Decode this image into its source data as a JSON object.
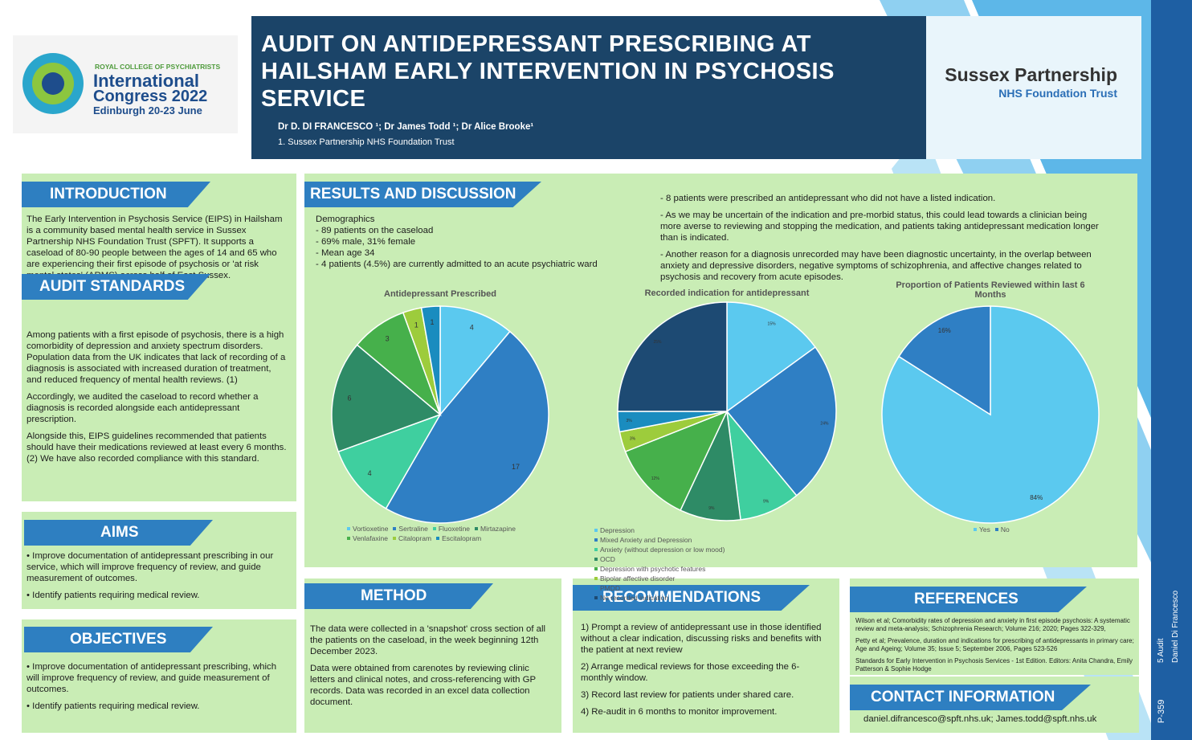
{
  "header": {
    "congress_org": "ROYAL COLLEGE OF PSYCHIATRISTS",
    "congress_name": "International",
    "congress_year": "Congress 2022",
    "congress_place": "Edinburgh 20-23 June",
    "title": "AUDIT ON ANTIDEPRESSANT PRESCRIBING AT HAILSHAM EARLY INTERVENTION IN PSYCHOSIS SERVICE",
    "authors": "Dr D. DI FRANCESCO ¹; Dr James Todd ¹; Dr Alice Brooke¹",
    "affiliation": "1. Sussex Partnership NHS Foundation Trust",
    "partner_name": "Sussex Partnership",
    "partner_sub": "NHS Foundation Trust"
  },
  "sidebar": {
    "topic": "5 Audit",
    "author": "Daniel Di Francesco",
    "code": "P-359"
  },
  "sections": {
    "introduction": {
      "heading": "INTRODUCTION",
      "paragraphs": [
        "The Early Intervention in Psychosis Service (EIPS) in Hailsham is a community based mental health service in Sussex Partnership NHS Foundation Trust (SPFT). It supports a caseload of 80-90 people between the ages of 14 and 65 who are experiencing their first episode of psychosis or 'at risk mental states' (ARMS) across half of East Sussex."
      ]
    },
    "audit_standards": {
      "heading": "AUDIT STANDARDS",
      "paragraphs": [
        "Among patients with a first episode of psychosis, there is a high comorbidity of depression and anxiety spectrum disorders.  Population data from the UK indicates that lack of recording of a diagnosis is associated with increased duration of treatment, and reduced frequency of mental health reviews. (1)",
        "Accordingly, we audited the caseload to record whether a diagnosis is recorded alongside each antidepressant prescription.",
        "Alongside this, EIPS guidelines recommended that patients should have their medications reviewed at least every 6 months. (2)  We have also recorded compliance with this standard."
      ]
    },
    "aims": {
      "heading": "AIMS",
      "paragraphs": [
        "•  Improve documentation of antidepressant prescribing in our service, which will improve frequency of review, and guide measurement of outcomes.",
        "•  Identify patients requiring medical review."
      ]
    },
    "objectives": {
      "heading": "OBJECTIVES",
      "paragraphs": [
        "•  Improve documentation of antidepressant prescribing, which will improve frequency of review, and guide measurement of outcomes.",
        "•  Identify patients requiring medical review."
      ]
    },
    "results": {
      "heading": "RESULTS AND DISCUSSION",
      "demographics_title": "Demographics",
      "demographics": [
        "-   89 patients on the caseload",
        "-   69% male, 31% female",
        "-   Mean age 34",
        "-   4 patients (4.5%) are currently admitted to an acute psychiatric ward"
      ],
      "discussion": [
        "- 8 patients were prescribed an antidepressant who did not have a listed indication.",
        "- As we may be uncertain of the indication and pre-morbid status, this could lead towards a clinician being more averse to reviewing and stopping the medication, and patients taking antidepressant medication longer than is indicated.",
        "- Another reason for a diagnosis unrecorded may have been diagnostic uncertainty, in the overlap between anxiety and depressive disorders, negative symptoms of schizophrenia, and affective changes related to psychosis and recovery from acute episodes."
      ]
    },
    "method": {
      "heading": "METHOD",
      "paragraphs": [
        "The data were collected in a 'snapshot' cross section of all the patients on the caseload, in the week beginning 12th December 2023.",
        "Data were obtained from carenotes by reviewing clinic letters and clinical notes, and cross-referencing with GP records. Data was recorded in an excel data collection document."
      ]
    },
    "recommendations": {
      "heading": "RECOMMENDATIONS",
      "paragraphs": [
        "1)      Prompt a review of antidepressant use in those identified without a clear indication, discussing risks and benefits with the patient at next review",
        "2)      Arrange medical reviews for those exceeding the 6-monthly window.",
        "3)      Record last review for patients under shared care.",
        "4)      Re-audit in 6 months to monitor improvement."
      ]
    },
    "references": {
      "heading": "REFERENCES",
      "paragraphs": [
        "Wilson et al; Comorbidity rates of depression and anxiety in first episode psychosis: A systematic review and meta-analysis; Schizophrenia Research; Volume 216; 2020; Pages 322-329,",
        "Petty et al; Prevalence, duration and indications for prescribing of antidepressants in primary care; Age and Ageing; Volume 35; Issue 5; September 2006, Pages 523-526",
        "Standards for Early Intervention in Psychosis Services - 1st Edition. Editors: Anita Chandra, Emily Patterson & Sophie Hodge"
      ]
    },
    "contact": {
      "heading": "CONTACT INFORMATION",
      "paragraphs": [
        "daniel.difrancesco@spft.nhs.uk; James.todd@spft.nhs.uk"
      ]
    }
  },
  "chart_data": [
    {
      "type": "pie",
      "title": "Antidepressant Prescribed",
      "categories": [
        "Vortioxetine",
        "Sertraline",
        "Fluoxetine",
        "Mirtazapine",
        "Venlafaxine",
        "Citalopram",
        "Escitalopram"
      ],
      "values": [
        4,
        17,
        4,
        6,
        3,
        1,
        1
      ],
      "colors": [
        "#5bc9ef",
        "#2f7fc4",
        "#3fcf9f",
        "#2e8b66",
        "#46b04b",
        "#9dcc3c",
        "#1a8cbf"
      ]
    },
    {
      "type": "pie",
      "title": "Recorded indication for antidepressant",
      "categories": [
        "Depression",
        "Mixed Anxiety and Depression",
        "Anxiety (without depression or low mood)",
        "OCD",
        "Depression with psychotic features",
        "Bipolar affective disorder",
        "PMDD",
        "No recorded indication"
      ],
      "values": [
        15,
        24,
        9,
        9,
        12,
        3,
        3,
        25
      ],
      "value_labels": [
        "15%",
        "24%",
        "9%",
        "9%",
        "12%",
        "3%",
        "3%",
        "25%"
      ],
      "colors": [
        "#5bc9ef",
        "#2f7fc4",
        "#3fcf9f",
        "#2e8b66",
        "#46b04b",
        "#9dcc3c",
        "#1a8cbf",
        "#1d4a73"
      ]
    },
    {
      "type": "pie",
      "title": "Proportion of Patients Reviewed within last 6 Months",
      "categories": [
        "Yes",
        "No"
      ],
      "values": [
        84,
        16
      ],
      "value_labels": [
        "84%",
        "16%"
      ],
      "colors": [
        "#5bc9ef",
        "#2f7fc4"
      ]
    }
  ]
}
